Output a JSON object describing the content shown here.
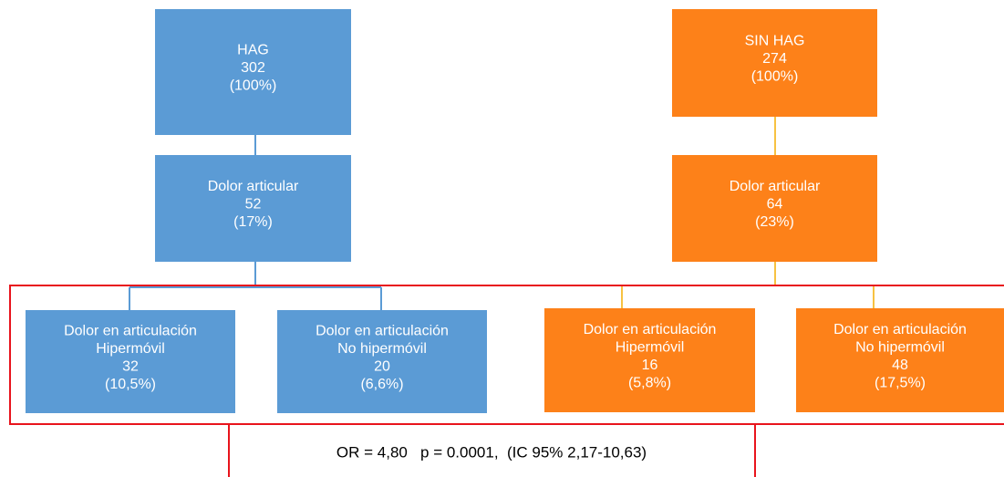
{
  "nodes": [
    {
      "lines": [
        "HAG",
        "302",
        "(100%)"
      ]
    },
    {
      "lines": [
        "Dolor articular",
        "52",
        "(17%)"
      ]
    },
    {
      "lines": [
        "Dolor en articulación",
        "Hipermóvil",
        "32",
        "(10,5%)"
      ]
    },
    {
      "lines": [
        "Dolor en articulación",
        "No hipermóvil",
        "20",
        "(6,6%)"
      ]
    },
    {
      "lines": [
        "SIN HAG",
        "274",
        "(100%)"
      ]
    },
    {
      "lines": [
        "Dolor articular",
        "64",
        "(23%)"
      ]
    },
    {
      "lines": [
        "Dolor en articulación",
        "Hipermóvil",
        "16",
        "(5,8%)"
      ]
    },
    {
      "lines": [
        "Dolor en articulación",
        "No hipermóvil",
        "48",
        "(17,5%)"
      ]
    }
  ],
  "result": "OR = 4,80   p = 0.0001,  (IC 95% 2,17-10,63)"
}
